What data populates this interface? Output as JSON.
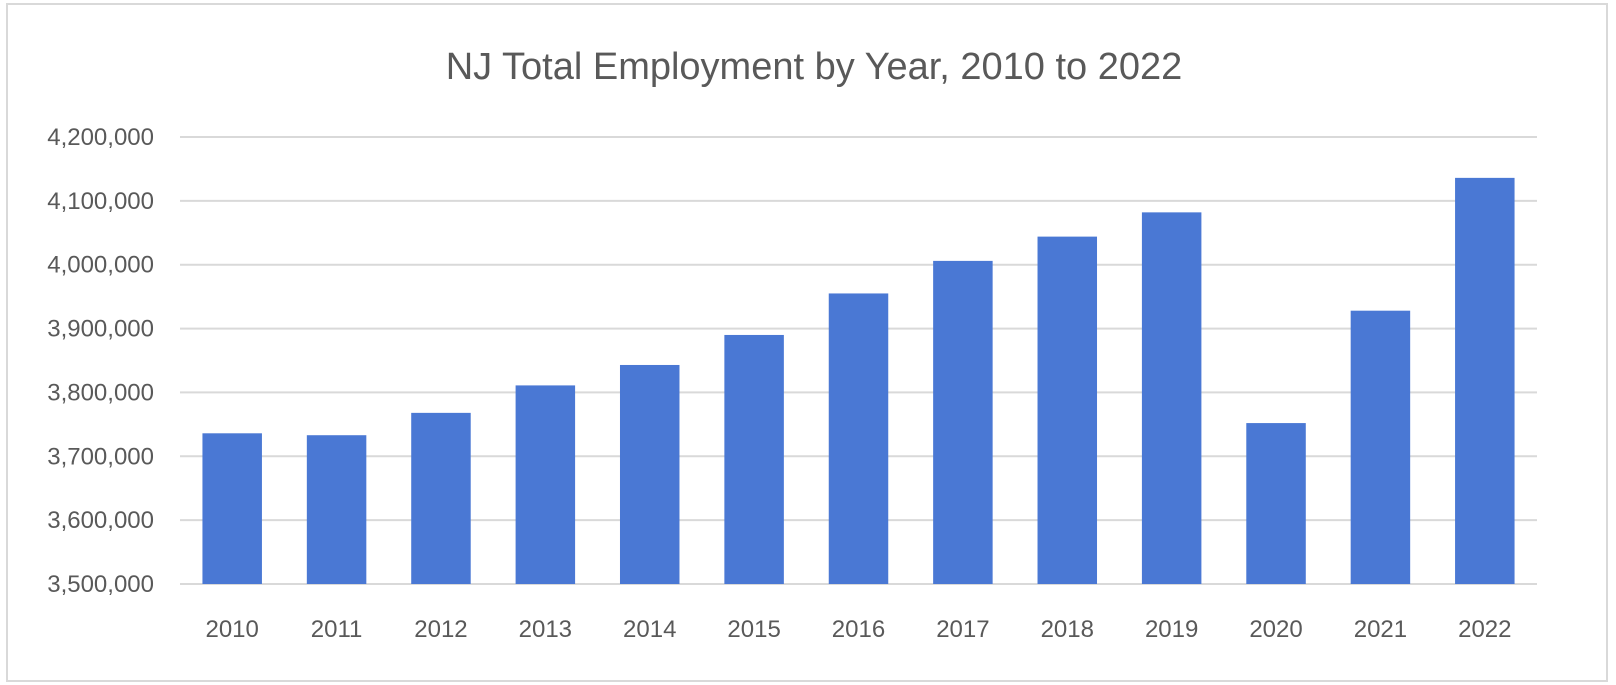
{
  "chart_data": {
    "type": "bar",
    "title": "NJ Total Employment  by Year, 2010 to 2022",
    "xlabel": "",
    "ylabel": "",
    "categories": [
      "2010",
      "2011",
      "2012",
      "2013",
      "2014",
      "2015",
      "2016",
      "2017",
      "2018",
      "2019",
      "2020",
      "2021",
      "2022"
    ],
    "values": [
      3736000,
      3733000,
      3768000,
      3811000,
      3843000,
      3890000,
      3955000,
      4006000,
      4044000,
      4082000,
      3752000,
      3928000,
      4136000
    ],
    "ylim": [
      3500000,
      4200000
    ],
    "yticks": [
      3500000,
      3600000,
      3700000,
      3800000,
      3900000,
      4000000,
      4100000,
      4200000
    ],
    "ytick_labels": [
      "3,500,000",
      "3,600,000",
      "3,700,000",
      "3,800,000",
      "3,900,000",
      "4,000,000",
      "4,100,000",
      "4,200,000"
    ],
    "grid": true,
    "legend": "none",
    "bar_color": "#4a78d4",
    "grid_color": "#d9d9d9",
    "text_color": "#595959"
  }
}
